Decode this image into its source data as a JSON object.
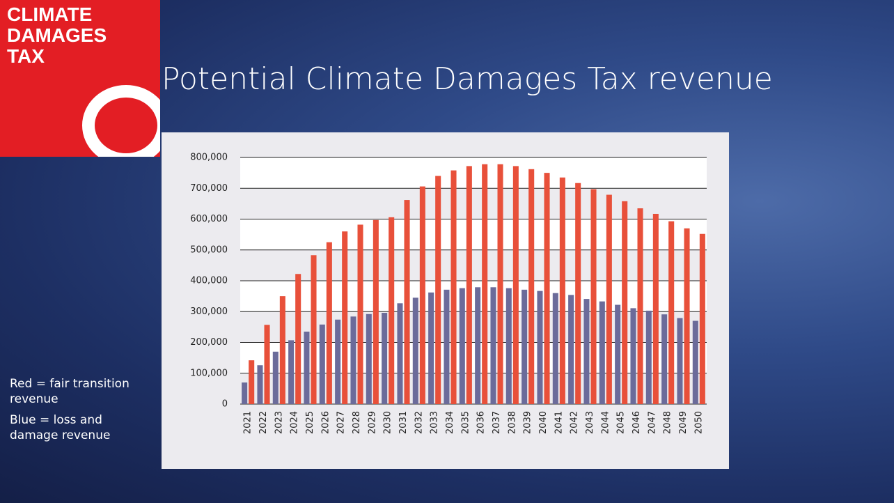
{
  "logo": [
    "CLIMATE",
    "DAMAGES",
    "TAX"
  ],
  "notes": [
    "Red = fair transition revenue",
    "Blue = loss and damage revenue"
  ],
  "chart_data": {
    "type": "bar",
    "title": "Potential Climate Damages Tax revenue",
    "categories": [
      "2021",
      "2022",
      "2023",
      "2024",
      "2025",
      "2026",
      "2027",
      "2028",
      "2029",
      "2030",
      "2031",
      "2032",
      "2033",
      "2034",
      "2035",
      "2036",
      "2037",
      "2038",
      "2039",
      "2040",
      "2041",
      "2042",
      "2043",
      "2044",
      "2045",
      "2046",
      "2047",
      "2048",
      "2049",
      "2050"
    ],
    "series": [
      {
        "color": "#6b6b9a",
        "values": [
          70000,
          126000,
          170000,
          207000,
          235000,
          258000,
          274000,
          284000,
          292000,
          296000,
          327000,
          345000,
          362000,
          371000,
          376000,
          379000,
          379000,
          376000,
          371000,
          367000,
          360000,
          354000,
          341000,
          333000,
          322000,
          311000,
          303000,
          291000,
          279000,
          270000
        ]
      },
      {
        "color": "#e8503a",
        "values": [
          142000,
          257000,
          350000,
          422000,
          483000,
          525000,
          560000,
          582000,
          597000,
          606000,
          662000,
          706000,
          740000,
          758000,
          772000,
          778000,
          778000,
          772000,
          762000,
          750000,
          735000,
          717000,
          697000,
          679000,
          658000,
          635000,
          617000,
          593000,
          570000,
          552000
        ]
      }
    ],
    "ylim": [
      0,
      800000
    ],
    "yticks": [
      0,
      {
        "value": 100000,
        "label": "100,000"
      },
      {
        "value": 200000,
        "label": "200,000"
      },
      {
        "value": 300000,
        "label": "300,000"
      },
      {
        "value": 400000,
        "label": "400,000"
      },
      {
        "value": 500000,
        "label": "500,000"
      },
      {
        "value": 600000,
        "label": "600,000"
      },
      {
        "value": 700000,
        "label": "700,000"
      },
      {
        "value": 800000,
        "label": "800,000"
      }
    ],
    "grid": true
  }
}
